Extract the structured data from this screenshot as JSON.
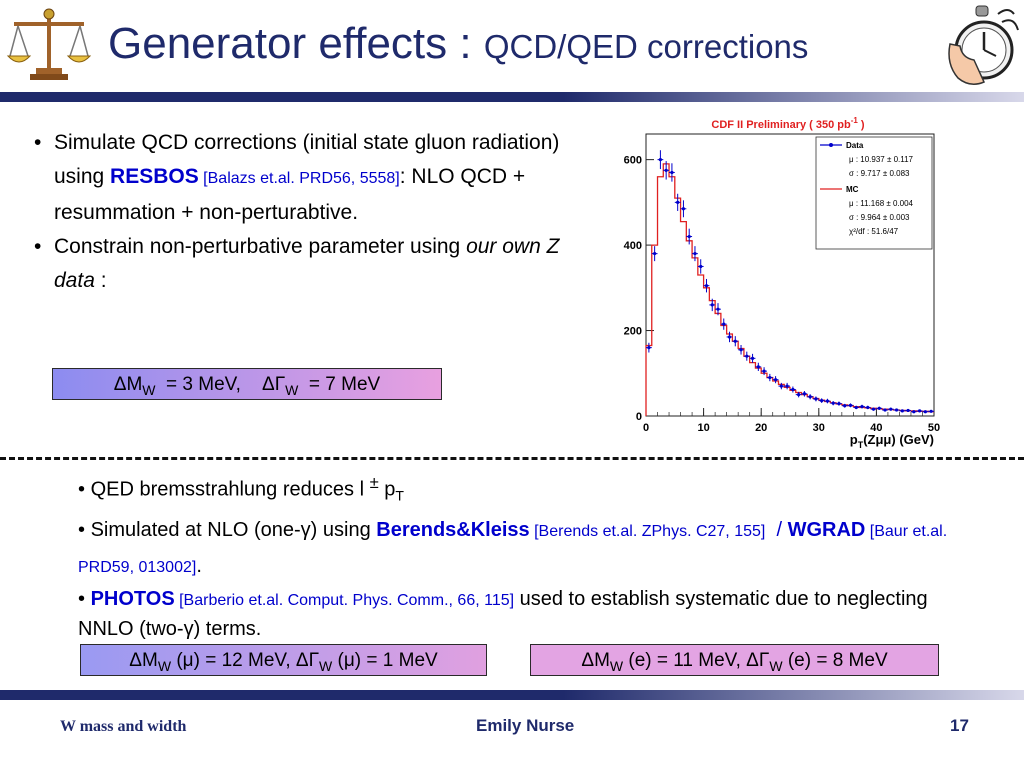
{
  "title": {
    "main": "Generator effects : ",
    "sub": "QCD/QED corrections"
  },
  "icons": {
    "left": "scales-icon",
    "right": "stopwatch-hand-icon"
  },
  "bullets": {
    "b1_t1": "Simulate QCD corrections (initial state gluon radiation) using ",
    "b1_resbos": "RESBOS",
    "b1_ref": " [Balazs et.al. PRD56, 5558]",
    "b1_t2": ": NLO QCD + resummation + non-perturabtive.",
    "b2_t1": "Constrain non-perturbative parameter using ",
    "b2_italic": "our own Z data",
    "b2_t2": " :"
  },
  "box_qcd": {
    "d": "Δ",
    "m": "M",
    "w": "W",
    "t1": "  = 3 MeV,    ",
    "dg": "ΔΓ",
    "w2": "W",
    "t2": "  = 7 MeV"
  },
  "chart_data": {
    "type": "histogram",
    "title": "CDF II Preliminary ( 350 pb",
    "title_sup": "-1",
    "title_end": " )",
    "xlabel": "p",
    "xlabel_sub": "T",
    "xlabel_rest": "(Zμμ) (GeV)",
    "xlim": [
      0,
      50
    ],
    "ylim": [
      0,
      660
    ],
    "xticks": [
      "0",
      "10",
      "20",
      "30",
      "40",
      "50"
    ],
    "yticks": [
      "0",
      "200",
      "400",
      "600"
    ],
    "legend": {
      "data_label": "Data",
      "data_mu": "μ  : 10.937 ± 0.117",
      "data_sigma": "σ  : 9.717 ± 0.083",
      "mc_label": "MC",
      "mc_mu": "μ  : 11.168 ± 0.004",
      "mc_sigma": "σ  : 9.964 ± 0.003",
      "chi2": "χ²/df : 51.6/47"
    },
    "bin_width": 1,
    "mc": [
      165,
      400,
      560,
      590,
      560,
      510,
      455,
      410,
      370,
      330,
      300,
      270,
      240,
      212,
      192,
      175,
      158,
      140,
      125,
      112,
      100,
      90,
      82,
      74,
      67,
      60,
      55,
      50,
      45,
      41,
      37,
      34,
      31,
      28,
      26,
      24,
      22,
      20,
      19,
      18,
      17,
      16,
      15,
      14,
      13,
      12,
      12,
      11,
      11,
      10
    ],
    "data": [
      160,
      380,
      600,
      575,
      570,
      500,
      485,
      420,
      380,
      350,
      305,
      260,
      250,
      215,
      185,
      175,
      155,
      140,
      135,
      115,
      105,
      90,
      85,
      70,
      70,
      62,
      50,
      52,
      45,
      40,
      36,
      35,
      30,
      29,
      24,
      25,
      20,
      22,
      20,
      16,
      18,
      14,
      16,
      14,
      12,
      13,
      10,
      12,
      10,
      11
    ]
  },
  "qed": {
    "l1": "QED bremsstrahlung reduces l",
    "l1_sup": "±",
    "l1_p": " p",
    "l1_sub": "T",
    "l2_t1": "Simulated at NLO (one-γ) using ",
    "l2_bk": "Berends&Kleiss",
    "l2_ref": " [Berends et.al. ZPhys. C27, 155]",
    "l2_sep": "  / ",
    "l2_wgrad": "WGRAD",
    "l2_ref2": " [Baur et.al. PRD59, 013002]",
    "l2_end": ".",
    "l3_photos": "PHOTOS",
    "l3_ref": " [Barberio et.al. Comput. Phys. Comm., 66, 115]",
    "l3_t": " used to establish systematic due to neglecting NNLO (two-γ) terms."
  },
  "box_mu": {
    "d": "Δ",
    "m": "M",
    "w": "W",
    "t1": " (μ) = 12 MeV, ",
    "dg": "ΔΓ",
    "w2": "W",
    "t2": " (μ) = 1 MeV"
  },
  "box_e": {
    "d": "Δ",
    "m": "M",
    "w": "W",
    "t1": " (e) = 11 MeV, ",
    "dg": "ΔΓ",
    "w2": "W",
    "t2": " (e) = 8 MeV"
  },
  "footer": {
    "left": "W mass and width",
    "center": "Emily Nurse",
    "right": "17"
  }
}
